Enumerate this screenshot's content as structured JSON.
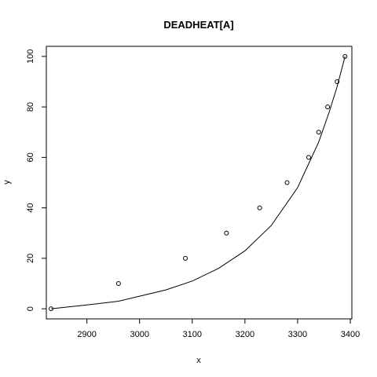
{
  "chart_data": {
    "type": "scatter",
    "title": "DEADHEAT[A]",
    "xlabel": "x",
    "ylabel": "y",
    "xlim": [
      2823,
      3403
    ],
    "ylim": [
      -4,
      104
    ],
    "grid": false,
    "xticks": [
      2900,
      3000,
      3100,
      3200,
      3300,
      3400
    ],
    "yticks": [
      0,
      20,
      40,
      60,
      80,
      100
    ],
    "series": [
      {
        "type": "scatter",
        "x": [
          2832,
          2960,
          3087,
          3165,
          3228,
          3280,
          3321,
          3340,
          3357,
          3375,
          3390
        ],
        "y": [
          0,
          10,
          20,
          30,
          40,
          50,
          60,
          70,
          80,
          90,
          100
        ]
      },
      {
        "type": "line",
        "x": [
          2832,
          2900,
          2960,
          3000,
          3050,
          3100,
          3150,
          3200,
          3250,
          3300,
          3320,
          3340,
          3360,
          3375,
          3390
        ],
        "y": [
          0,
          1.5,
          3,
          5,
          7.5,
          11,
          16,
          23,
          33,
          48,
          57,
          66,
          78,
          88,
          100
        ]
      }
    ]
  }
}
